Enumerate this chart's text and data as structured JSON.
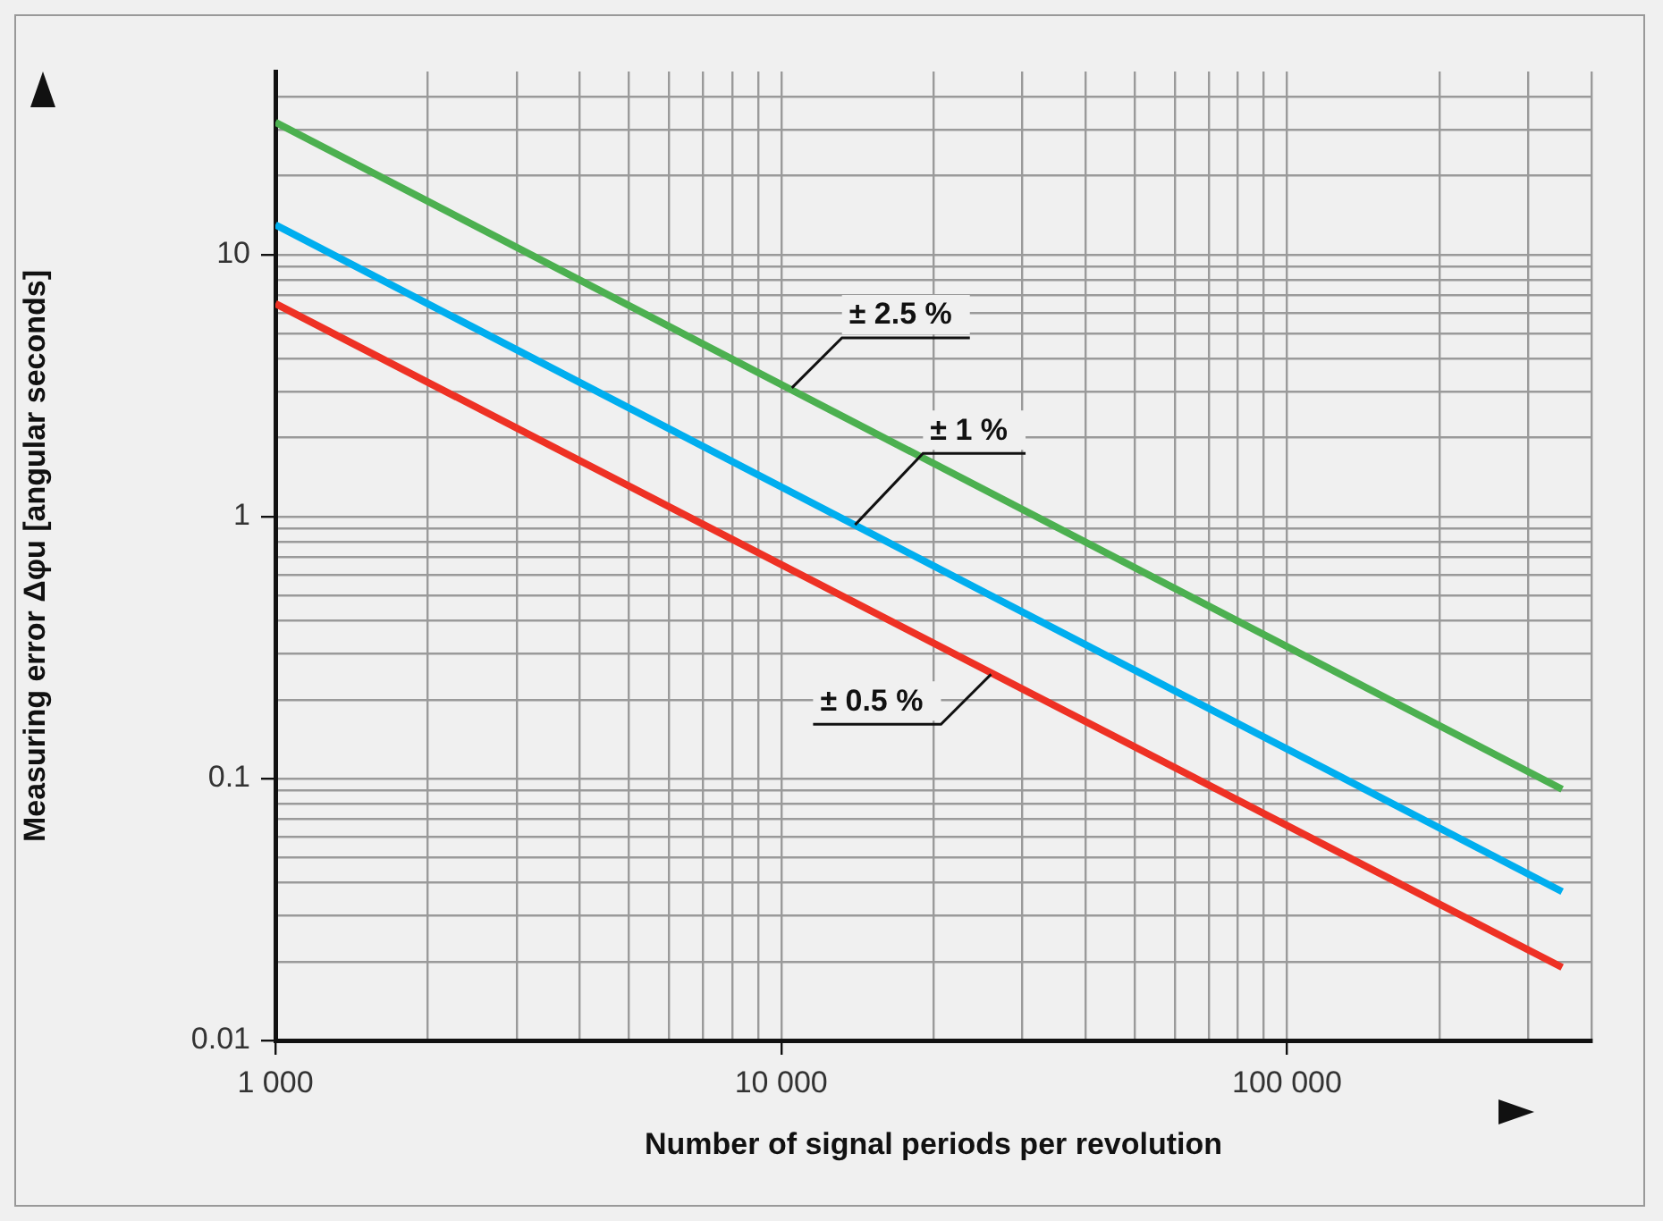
{
  "chart_data": {
    "type": "line",
    "xlabel": "Number of signal periods per revolution",
    "ylabel": "Measuring error Δφu [angular seconds]",
    "x": [
      1000,
      350000
    ],
    "series": [
      {
        "color": "#4cb050",
        "values": [
          32,
          0.091
        ]
      },
      {
        "color": "#00aeef",
        "values": [
          13,
          0.037
        ]
      },
      {
        "color": "#ee3124",
        "values": [
          6.5,
          0.019
        ]
      }
    ],
    "annotations": [
      {
        "text": "± 2.5 %",
        "x": 10500,
        "y": 3.1
      },
      {
        "text": "± 1 %",
        "x": 14000,
        "y": 0.93
      },
      {
        "text": "± 0.5 %",
        "x": 26000,
        "y": 0.25
      }
    ],
    "log": "xy",
    "xlim": [
      1000,
      400000
    ],
    "ylim": [
      0.01,
      50
    ],
    "xticks": [
      {
        "value": 1000,
        "label": "1 000"
      },
      {
        "value": 2000,
        "label": null
      },
      {
        "value": 3000,
        "label": null
      },
      {
        "value": 4000,
        "label": null
      },
      {
        "value": 5000,
        "label": null
      },
      {
        "value": 6000,
        "label": null
      },
      {
        "value": 7000,
        "label": null
      },
      {
        "value": 8000,
        "label": null
      },
      {
        "value": 9000,
        "label": null
      },
      {
        "value": 10000,
        "label": "10 000"
      },
      {
        "value": 20000,
        "label": null
      },
      {
        "value": 30000,
        "label": null
      },
      {
        "value": 40000,
        "label": null
      },
      {
        "value": 50000,
        "label": null
      },
      {
        "value": 60000,
        "label": null
      },
      {
        "value": 70000,
        "label": null
      },
      {
        "value": 80000,
        "label": null
      },
      {
        "value": 90000,
        "label": null
      },
      {
        "value": 100000,
        "label": "100 000"
      },
      {
        "value": 200000,
        "label": null
      },
      {
        "value": 300000,
        "label": null
      },
      {
        "value": 400000,
        "label": null
      }
    ],
    "yticks": [
      0.01,
      {
        "value": 0.02,
        "label": null
      },
      {
        "value": 0.03,
        "label": null
      },
      {
        "value": 0.04,
        "label": null
      },
      {
        "value": 0.05,
        "label": null
      },
      {
        "value": 0.06,
        "label": null
      },
      {
        "value": 0.07,
        "label": null
      },
      {
        "value": 0.08,
        "label": null
      },
      {
        "value": 0.09,
        "label": null
      },
      0.1,
      {
        "value": 0.2,
        "label": null
      },
      {
        "value": 0.3,
        "label": null
      },
      {
        "value": 0.4,
        "label": null
      },
      {
        "value": 0.5,
        "label": null
      },
      {
        "value": 0.6,
        "label": null
      },
      {
        "value": 0.7,
        "label": null
      },
      {
        "value": 0.8,
        "label": null
      },
      {
        "value": 0.9,
        "label": null
      },
      1,
      {
        "value": 2,
        "label": null
      },
      {
        "value": 3,
        "label": null
      },
      {
        "value": 4,
        "label": null
      },
      {
        "value": 5,
        "label": null
      },
      {
        "value": 6,
        "label": null
      },
      {
        "value": 7,
        "label": null
      },
      {
        "value": 8,
        "label": null
      },
      {
        "value": 9,
        "label": null
      },
      10,
      {
        "value": 20,
        "label": null
      },
      {
        "value": 30,
        "label": null
      },
      {
        "value": 40,
        "label": null
      }
    ],
    "grid": true,
    "legend": false,
    "marker": "none",
    "line_style": "solid"
  }
}
